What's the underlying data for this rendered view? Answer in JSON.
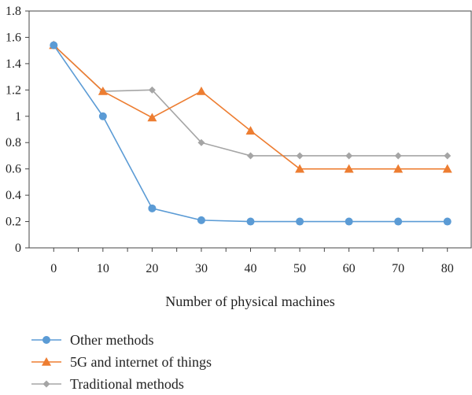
{
  "chart_data": {
    "type": "line",
    "title": "",
    "xlabel": "Number of physical machines",
    "ylabel": "",
    "x": [
      0,
      10,
      20,
      30,
      40,
      50,
      60,
      70,
      80
    ],
    "xlim": [
      -5,
      85
    ],
    "ylim": [
      0,
      1.8
    ],
    "x_ticks": [
      "0",
      "10",
      "20",
      "30",
      "40",
      "50",
      "60",
      "70",
      "80"
    ],
    "y_ticks": [
      "0",
      "0.2",
      "0.4",
      "0.6",
      "0.8",
      "1",
      "1.2",
      "1.4",
      "1.6",
      "1.8"
    ],
    "grid": false,
    "legend_position": "bottom-left",
    "series": [
      {
        "name": "Other methods",
        "color": "#5b9bd5",
        "marker": "circle",
        "values": [
          1.54,
          1.0,
          0.3,
          0.21,
          0.2,
          0.2,
          0.2,
          0.2,
          0.2
        ]
      },
      {
        "name": "5G and internet of things",
        "color": "#ed7d31",
        "marker": "triangle",
        "values": [
          1.54,
          1.19,
          0.99,
          1.19,
          0.89,
          0.6,
          0.6,
          0.6,
          0.6
        ]
      },
      {
        "name": "Traditional methods",
        "color": "#a5a5a5",
        "marker": "diamond",
        "values": [
          1.54,
          1.19,
          1.2,
          0.8,
          0.7,
          0.7,
          0.7,
          0.7,
          0.7
        ]
      }
    ]
  }
}
